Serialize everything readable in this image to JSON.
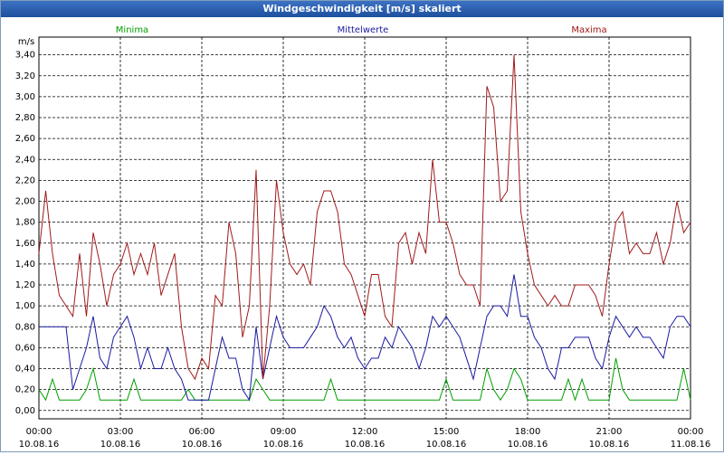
{
  "chart_data": {
    "type": "line",
    "title": "Windgeschwindigkeit [m/s] skaliert",
    "y_unit": "m/s",
    "x": [
      0,
      0.25,
      0.5,
      0.75,
      1,
      1.25,
      1.5,
      1.75,
      2,
      2.25,
      2.5,
      2.75,
      3,
      3.25,
      3.5,
      3.75,
      4,
      4.25,
      4.5,
      4.75,
      5,
      5.25,
      5.5,
      5.75,
      6,
      6.25,
      6.5,
      6.75,
      7,
      7.25,
      7.5,
      7.75,
      8,
      8.25,
      8.5,
      8.75,
      9,
      9.25,
      9.5,
      9.75,
      10,
      10.25,
      10.5,
      10.75,
      11,
      11.25,
      11.5,
      11.75,
      12,
      12.25,
      12.5,
      12.75,
      13,
      13.25,
      13.5,
      13.75,
      14,
      14.25,
      14.5,
      14.75,
      15,
      15.25,
      15.5,
      15.75,
      16,
      16.25,
      16.5,
      16.75,
      17,
      17.25,
      17.5,
      17.75,
      18,
      18.25,
      18.5,
      18.75,
      19,
      19.25,
      19.5,
      19.75,
      20,
      20.25,
      20.5,
      20.75,
      21,
      21.25,
      21.5,
      21.75,
      22,
      22.25,
      22.5,
      22.75,
      23,
      23.25,
      23.5,
      23.75,
      24
    ],
    "series": [
      {
        "name": "Minima",
        "color": "#00a000",
        "values": [
          0.2,
          0.1,
          0.3,
          0.1,
          0.1,
          0.1,
          0.1,
          0.2,
          0.4,
          0.1,
          0.1,
          0.1,
          0.1,
          0.1,
          0.3,
          0.1,
          0.1,
          0.1,
          0.1,
          0.1,
          0.1,
          0.1,
          0.2,
          0.1,
          0.1,
          0.1,
          0.1,
          0.1,
          0.1,
          0.1,
          0.1,
          0.1,
          0.3,
          0.2,
          0.1,
          0.1,
          0.1,
          0.1,
          0.1,
          0.1,
          0.1,
          0.1,
          0.1,
          0.3,
          0.1,
          0.1,
          0.1,
          0.1,
          0.1,
          0.1,
          0.1,
          0.1,
          0.1,
          0.1,
          0.1,
          0.1,
          0.1,
          0.1,
          0.1,
          0.1,
          0.3,
          0.1,
          0.1,
          0.1,
          0.1,
          0.1,
          0.4,
          0.2,
          0.1,
          0.2,
          0.4,
          0.3,
          0.1,
          0.1,
          0.1,
          0.1,
          0.1,
          0.1,
          0.3,
          0.1,
          0.3,
          0.1,
          0.1,
          0.1,
          0.1,
          0.5,
          0.2,
          0.1,
          0.1,
          0.1,
          0.1,
          0.1,
          0.1,
          0.1,
          0.1,
          0.4,
          0.1
        ]
      },
      {
        "name": "Mittelwerte",
        "color": "#1a1aa0",
        "values": [
          0.8,
          0.8,
          0.8,
          0.8,
          0.8,
          0.2,
          0.4,
          0.6,
          0.9,
          0.5,
          0.4,
          0.7,
          0.8,
          0.9,
          0.7,
          0.4,
          0.6,
          0.4,
          0.4,
          0.6,
          0.4,
          0.3,
          0.1,
          0.1,
          0.1,
          0.1,
          0.4,
          0.7,
          0.5,
          0.5,
          0.2,
          0.1,
          0.8,
          0.3,
          0.6,
          0.9,
          0.7,
          0.6,
          0.6,
          0.6,
          0.7,
          0.8,
          1.0,
          0.9,
          0.7,
          0.6,
          0.7,
          0.5,
          0.4,
          0.5,
          0.5,
          0.7,
          0.6,
          0.8,
          0.7,
          0.6,
          0.4,
          0.6,
          0.9,
          0.8,
          0.9,
          0.8,
          0.7,
          0.5,
          0.3,
          0.6,
          0.9,
          1.0,
          1.0,
          0.9,
          1.3,
          0.9,
          0.9,
          0.7,
          0.6,
          0.4,
          0.3,
          0.6,
          0.6,
          0.7,
          0.7,
          0.7,
          0.5,
          0.4,
          0.7,
          0.9,
          0.8,
          0.7,
          0.8,
          0.7,
          0.7,
          0.6,
          0.5,
          0.8,
          0.9,
          0.9,
          0.8
        ]
      },
      {
        "name": "Maxima",
        "color": "#a01a1a",
        "values": [
          1.5,
          2.1,
          1.5,
          1.1,
          1.0,
          0.9,
          1.5,
          0.9,
          1.7,
          1.4,
          1.0,
          1.3,
          1.4,
          1.6,
          1.3,
          1.5,
          1.3,
          1.6,
          1.1,
          1.3,
          1.5,
          0.8,
          0.4,
          0.3,
          0.5,
          0.4,
          1.1,
          1.0,
          1.8,
          1.5,
          0.7,
          1.0,
          2.3,
          0.3,
          1.0,
          2.2,
          1.7,
          1.4,
          1.3,
          1.4,
          1.2,
          1.9,
          2.1,
          2.1,
          1.9,
          1.4,
          1.3,
          1.1,
          0.9,
          1.3,
          1.3,
          0.9,
          0.8,
          1.6,
          1.7,
          1.4,
          1.7,
          1.5,
          2.4,
          1.8,
          1.8,
          1.6,
          1.3,
          1.2,
          1.2,
          1.0,
          3.1,
          2.9,
          2.0,
          2.1,
          3.4,
          1.9,
          1.5,
          1.2,
          1.1,
          1.0,
          1.1,
          1.0,
          1.0,
          1.2,
          1.2,
          1.2,
          1.1,
          0.9,
          1.4,
          1.8,
          1.9,
          1.5,
          1.6,
          1.5,
          1.5,
          1.7,
          1.4,
          1.6,
          2.0,
          1.7,
          1.8
        ]
      }
    ],
    "xlim": [
      0,
      24
    ],
    "xticks": [
      {
        "value": 0,
        "label": "00:00"
      },
      {
        "value": 3,
        "label": "03:00"
      },
      {
        "value": 6,
        "label": "06:00"
      },
      {
        "value": 9,
        "label": "09:00"
      },
      {
        "value": 12,
        "label": "12:00"
      },
      {
        "value": 15,
        "label": "15:00"
      },
      {
        "value": 18,
        "label": "18:00"
      },
      {
        "value": 21,
        "label": "21:00"
      },
      {
        "value": 24,
        "label": "00:00"
      }
    ],
    "xtick_dates": [
      "10.08.16",
      "10.08.16",
      "10.08.16",
      "10.08.16",
      "10.08.16",
      "10.08.16",
      "10.08.16",
      "10.08.16",
      "11.08.16"
    ],
    "ylim": [
      -0.08,
      3.57
    ],
    "yticks": [
      {
        "value": 0,
        "label": "0,00"
      },
      {
        "value": 0.2,
        "label": "0,20"
      },
      {
        "value": 0.4,
        "label": "0,40"
      },
      {
        "value": 0.6,
        "label": "0,60"
      },
      {
        "value": 0.8,
        "label": "0,80"
      },
      {
        "value": 1.0,
        "label": "1,00"
      },
      {
        "value": 1.2,
        "label": "1,20"
      },
      {
        "value": 1.4,
        "label": "1,40"
      },
      {
        "value": 1.6,
        "label": "1,60"
      },
      {
        "value": 1.8,
        "label": "1,80"
      },
      {
        "value": 2.0,
        "label": "2,00"
      },
      {
        "value": 2.2,
        "label": "2,20"
      },
      {
        "value": 2.4,
        "label": "2,40"
      },
      {
        "value": 2.6,
        "label": "2,60"
      },
      {
        "value": 2.8,
        "label": "2,80"
      },
      {
        "value": 3.0,
        "label": "3,00"
      },
      {
        "value": 3.2,
        "label": "3,20"
      },
      {
        "value": 3.4,
        "label": "3,40"
      }
    ],
    "grid": true
  }
}
